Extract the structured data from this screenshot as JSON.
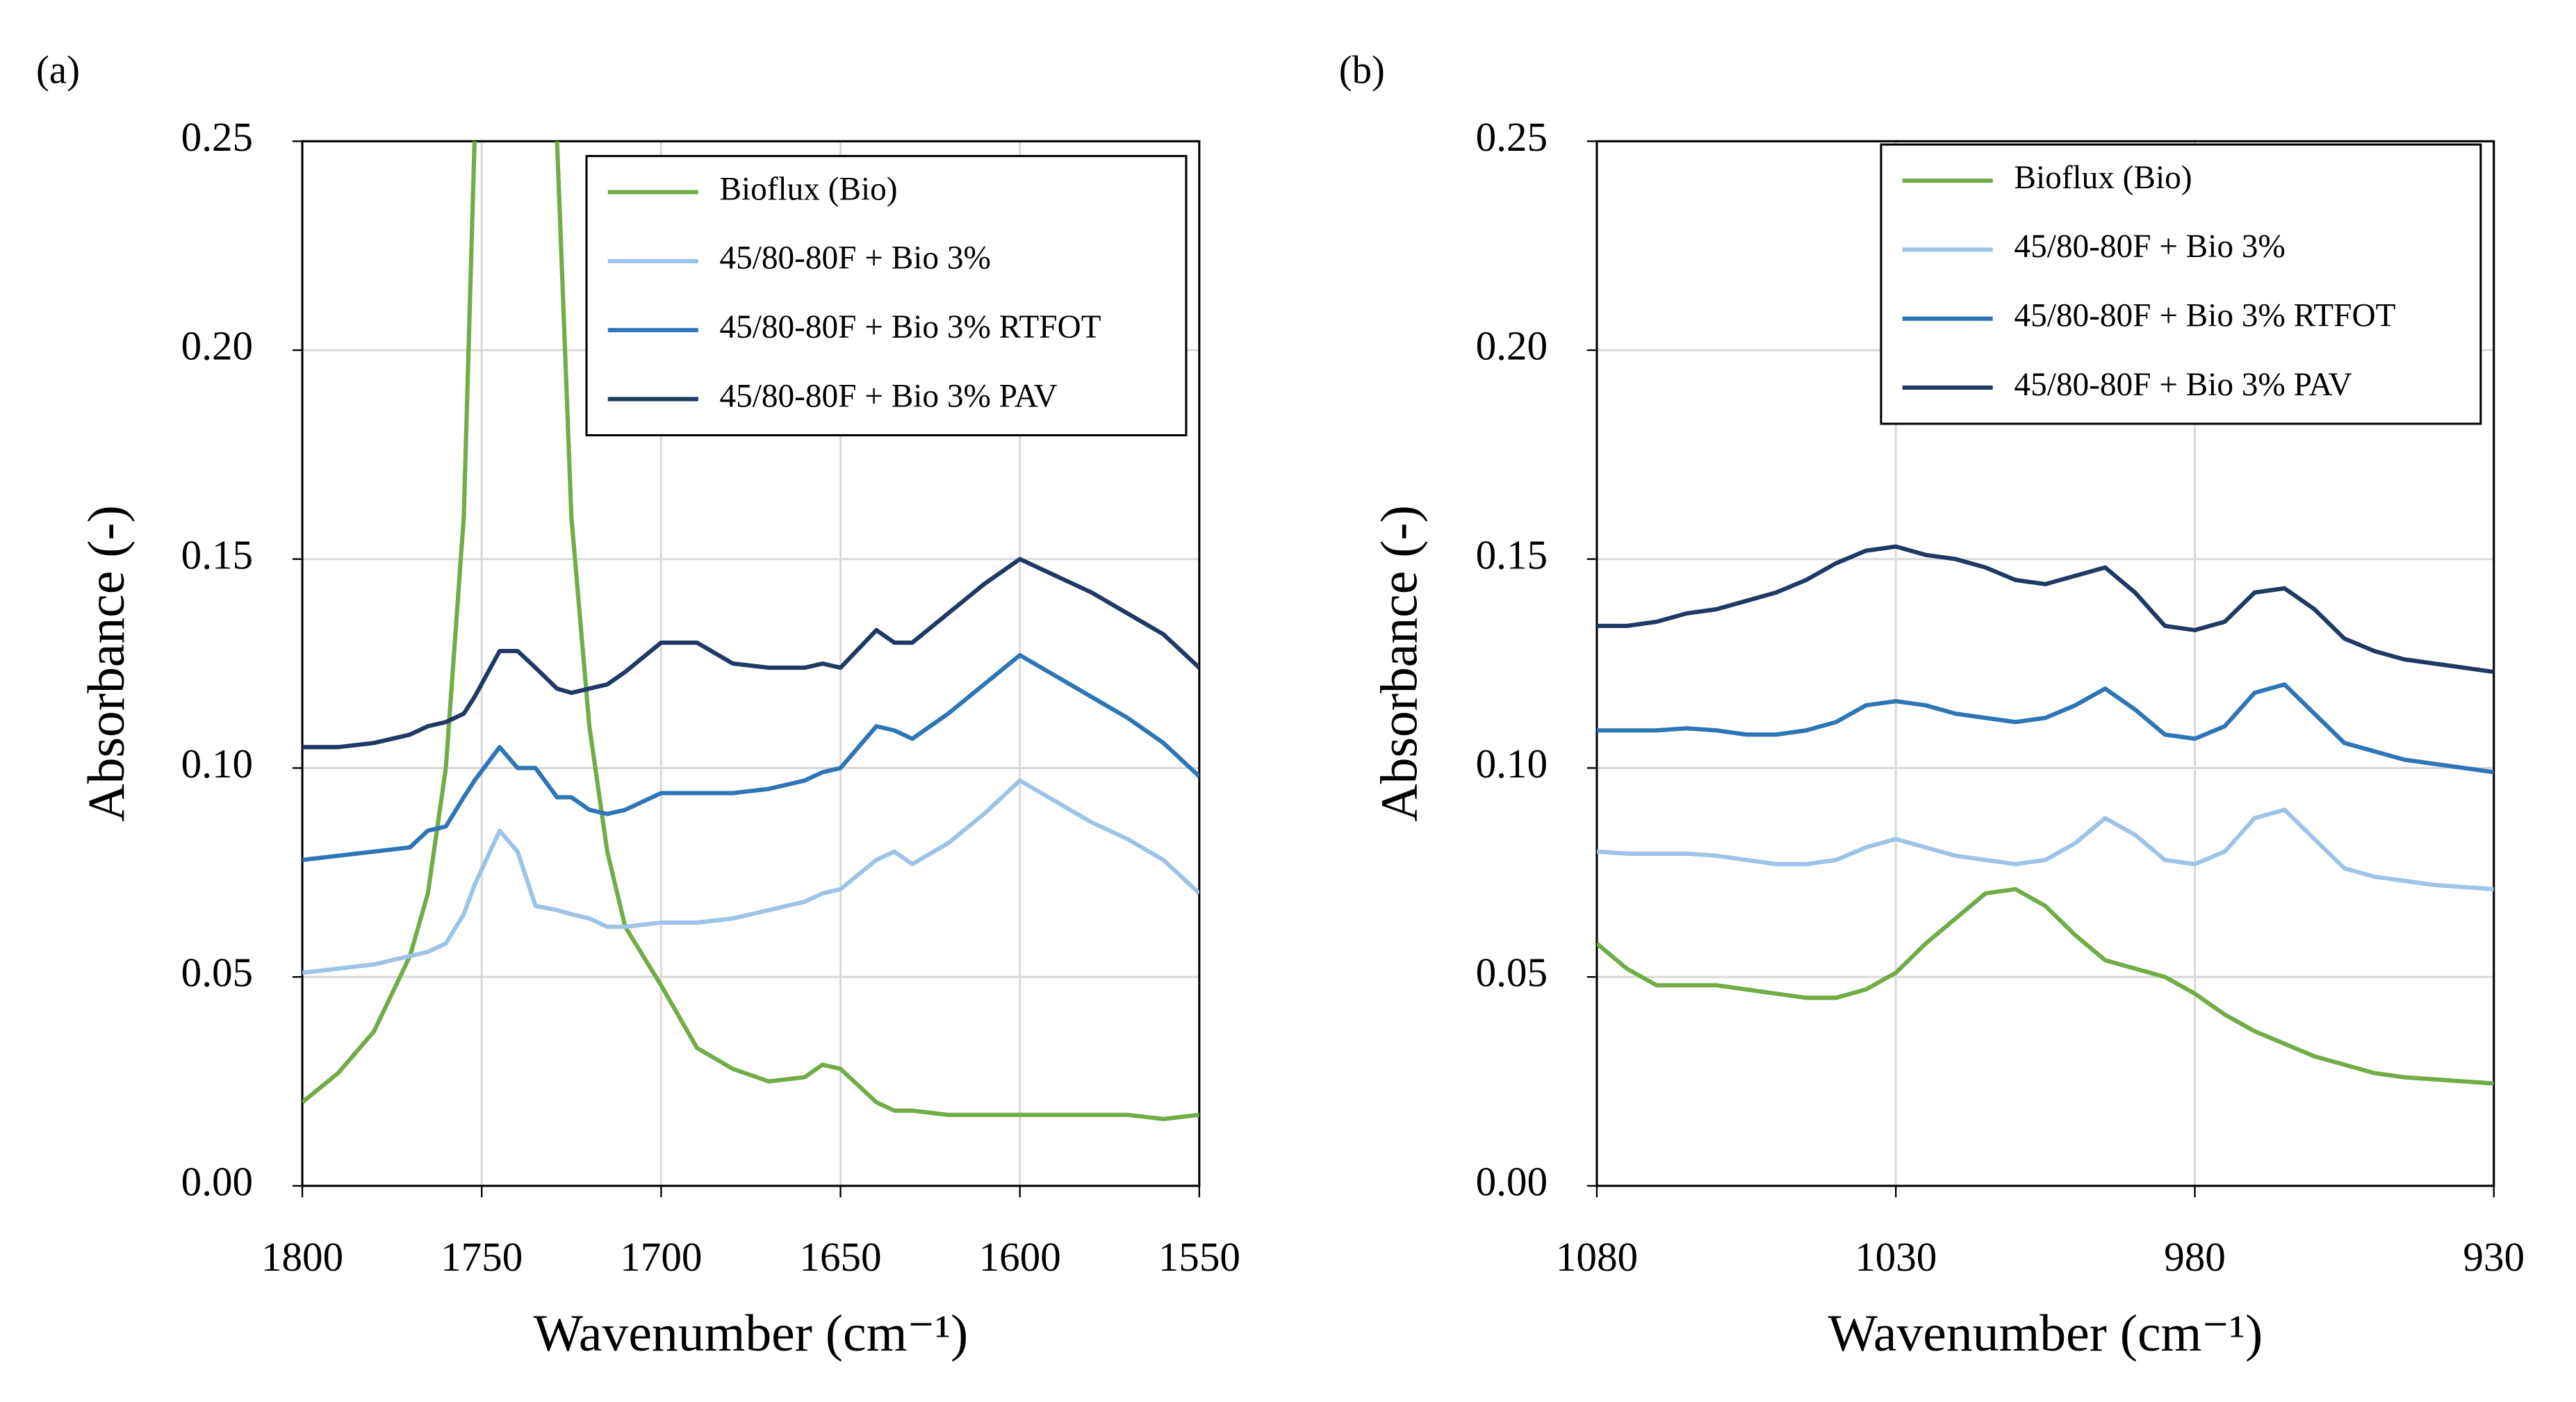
{
  "chart_data": [
    {
      "type": "line",
      "panel_label": "(a)",
      "xlabel": "Wavenumber (cm⁻¹)",
      "ylabel": "Absorbance (-)",
      "xlim": [
        1800,
        1550
      ],
      "xticks": [
        1800,
        1750,
        1700,
        1650,
        1600,
        1550
      ],
      "ylim": [
        0,
        0.25
      ],
      "yticks": [
        {
          "value": 0,
          "label": "0.00"
        },
        0.05,
        {
          "value": 0.1,
          "label": "0.10"
        },
        0.15,
        {
          "value": 0.2,
          "label": "0.20"
        },
        0.25
      ],
      "grid": true,
      "legend": "upper right",
      "x": [
        1800,
        1790,
        1780,
        1770,
        1765,
        1760,
        1755,
        1752,
        1745,
        1740,
        1735,
        1729,
        1725,
        1720,
        1715,
        1710,
        1700,
        1690,
        1680,
        1670,
        1660,
        1655,
        1650,
        1640,
        1635,
        1630,
        1620,
        1610,
        1600,
        1590,
        1580,
        1570,
        1560,
        1550
      ],
      "series": [
        {
          "name": "Bioflux (Bio)",
          "color": "#70ad47",
          "values": [
            0.02,
            0.027,
            0.037,
            0.055,
            0.07,
            0.1,
            0.16,
            0.25,
            null,
            null,
            null,
            0.25,
            0.16,
            0.11,
            0.08,
            0.062,
            0.048,
            0.033,
            0.028,
            0.025,
            0.026,
            0.029,
            0.028,
            0.02,
            0.018,
            0.018,
            0.017,
            0.017,
            0.017,
            0.017,
            0.017,
            0.017,
            0.016,
            0.017
          ]
        },
        {
          "name": "45/80-80F + Bio 3%",
          "color": "#9dc3e6",
          "values": [
            0.051,
            0.052,
            0.053,
            0.055,
            0.056,
            0.058,
            0.065,
            0.072,
            0.085,
            0.08,
            0.067,
            0.066,
            0.065,
            0.064,
            0.062,
            0.062,
            0.063,
            0.063,
            0.064,
            0.066,
            0.068,
            0.07,
            0.071,
            0.078,
            0.08,
            0.077,
            0.082,
            0.089,
            0.097,
            0.092,
            0.087,
            0.083,
            0.078,
            0.07
          ]
        },
        {
          "name": "45/80-80F + Bio 3% RTFOT",
          "color": "#2e75b6",
          "values": [
            0.078,
            0.079,
            0.08,
            0.081,
            0.085,
            0.086,
            0.093,
            0.097,
            0.105,
            0.1,
            0.1,
            0.093,
            0.093,
            0.09,
            0.089,
            0.09,
            0.094,
            0.094,
            0.094,
            0.095,
            0.097,
            0.099,
            0.1,
            0.11,
            0.109,
            0.107,
            0.113,
            0.12,
            0.127,
            0.122,
            0.117,
            0.112,
            0.106,
            0.098
          ]
        },
        {
          "name": "45/80-80F + Bio 3% PAV",
          "color": "#203864",
          "values": [
            0.105,
            0.105,
            0.106,
            0.108,
            0.11,
            0.111,
            0.113,
            0.117,
            0.128,
            0.128,
            0.124,
            0.119,
            0.118,
            0.119,
            0.12,
            0.123,
            0.13,
            0.13,
            0.125,
            0.124,
            0.124,
            0.125,
            0.124,
            0.133,
            0.13,
            0.13,
            0.137,
            0.144,
            0.15,
            0.146,
            0.142,
            0.137,
            0.132,
            0.124
          ]
        }
      ]
    },
    {
      "type": "line",
      "panel_label": "(b)",
      "xlabel": "Wavenumber (cm⁻¹)",
      "ylabel": "Absorbance (-)",
      "xlim": [
        1080,
        930
      ],
      "xticks": [
        1080,
        1030,
        980,
        930
      ],
      "ylim": [
        0,
        0.25
      ],
      "yticks": [
        {
          "value": 0,
          "label": "0.00"
        },
        0.05,
        {
          "value": 0.1,
          "label": "0.10"
        },
        0.15,
        {
          "value": 0.2,
          "label": "0.20"
        },
        0.25
      ],
      "grid": true,
      "legend": "upper right",
      "x": [
        1080,
        1075,
        1070,
        1065,
        1060,
        1055,
        1050,
        1045,
        1040,
        1035,
        1030,
        1025,
        1020,
        1015,
        1010,
        1005,
        1000,
        995,
        990,
        985,
        980,
        975,
        970,
        965,
        960,
        955,
        950,
        945,
        940,
        935,
        930
      ],
      "series": [
        {
          "name": "Bioflux (Bio)",
          "color": "#70ad47",
          "values": [
            0.058,
            0.052,
            0.048,
            0.048,
            0.048,
            0.047,
            0.046,
            0.045,
            0.045,
            0.047,
            0.051,
            0.058,
            0.064,
            0.07,
            0.071,
            0.067,
            0.06,
            0.054,
            0.052,
            0.05,
            0.046,
            0.041,
            0.037,
            0.034,
            0.031,
            0.029,
            0.027,
            0.026,
            0.0255,
            0.025,
            0.0245
          ]
        },
        {
          "name": "45/80-80F + Bio 3%",
          "color": "#9dc3e6",
          "values": [
            0.08,
            0.0795,
            0.0795,
            0.0795,
            0.079,
            0.078,
            0.077,
            0.077,
            0.078,
            0.081,
            0.083,
            0.081,
            0.079,
            0.078,
            0.077,
            0.078,
            0.082,
            0.088,
            0.084,
            0.078,
            0.077,
            0.08,
            0.088,
            0.09,
            0.083,
            0.076,
            0.074,
            0.073,
            0.072,
            0.0715,
            0.071
          ]
        },
        {
          "name": "45/80-80F + Bio 3% RTFOT",
          "color": "#2e75b6",
          "values": [
            0.109,
            0.109,
            0.109,
            0.1095,
            0.109,
            0.108,
            0.108,
            0.109,
            0.111,
            0.115,
            0.116,
            0.115,
            0.113,
            0.112,
            0.111,
            0.112,
            0.115,
            0.119,
            0.114,
            0.108,
            0.107,
            0.11,
            0.118,
            0.12,
            0.113,
            0.106,
            0.104,
            0.102,
            0.101,
            0.1,
            0.099
          ]
        },
        {
          "name": "45/80-80F + Bio 3% PAV",
          "color": "#203864",
          "values": [
            0.134,
            0.134,
            0.135,
            0.137,
            0.138,
            0.14,
            0.142,
            0.145,
            0.149,
            0.152,
            0.153,
            0.151,
            0.15,
            0.148,
            0.145,
            0.144,
            0.146,
            0.148,
            0.142,
            0.134,
            0.133,
            0.135,
            0.142,
            0.143,
            0.138,
            0.131,
            0.128,
            0.126,
            0.125,
            0.124,
            0.123
          ]
        }
      ]
    }
  ]
}
